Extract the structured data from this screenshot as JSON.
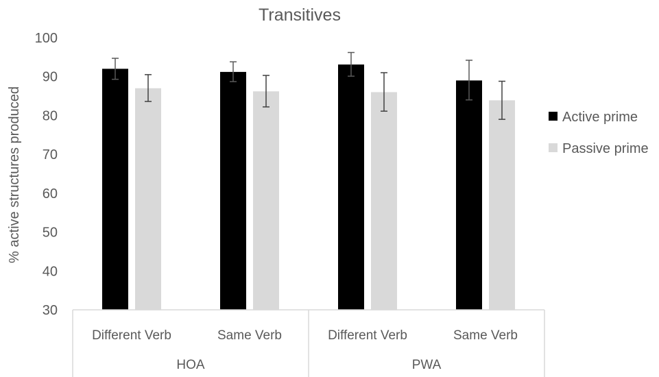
{
  "chart_data": {
    "type": "bar",
    "title": "Transitives",
    "ylabel": "% active structures produced",
    "xlabel": "",
    "ylim": [
      30,
      100
    ],
    "yticks": [
      30,
      40,
      50,
      60,
      70,
      80,
      90,
      100
    ],
    "groups": [
      {
        "label": "HOA",
        "categories": [
          "Different Verb",
          "Same Verb"
        ]
      },
      {
        "label": "PWA",
        "categories": [
          "Different Verb",
          "Same Verb"
        ]
      }
    ],
    "categories": [
      "Different Verb",
      "Same Verb",
      "Different Verb",
      "Same Verb"
    ],
    "series": [
      {
        "name": "Active prime",
        "color": "#000000",
        "values": [
          92,
          91.2,
          93.1,
          89
        ],
        "error_low": [
          89.3,
          88.7,
          90.1,
          84
        ],
        "error_high": [
          94.7,
          93.8,
          96.2,
          94.2
        ]
      },
      {
        "name": "Passive prime",
        "color": "#d9d9d9",
        "values": [
          87,
          86.2,
          86,
          83.9
        ],
        "error_low": [
          83.6,
          82.2,
          81.1,
          79
        ],
        "error_high": [
          90.5,
          90.3,
          91,
          88.8
        ]
      }
    ],
    "legend_position": "right",
    "grid": false
  }
}
